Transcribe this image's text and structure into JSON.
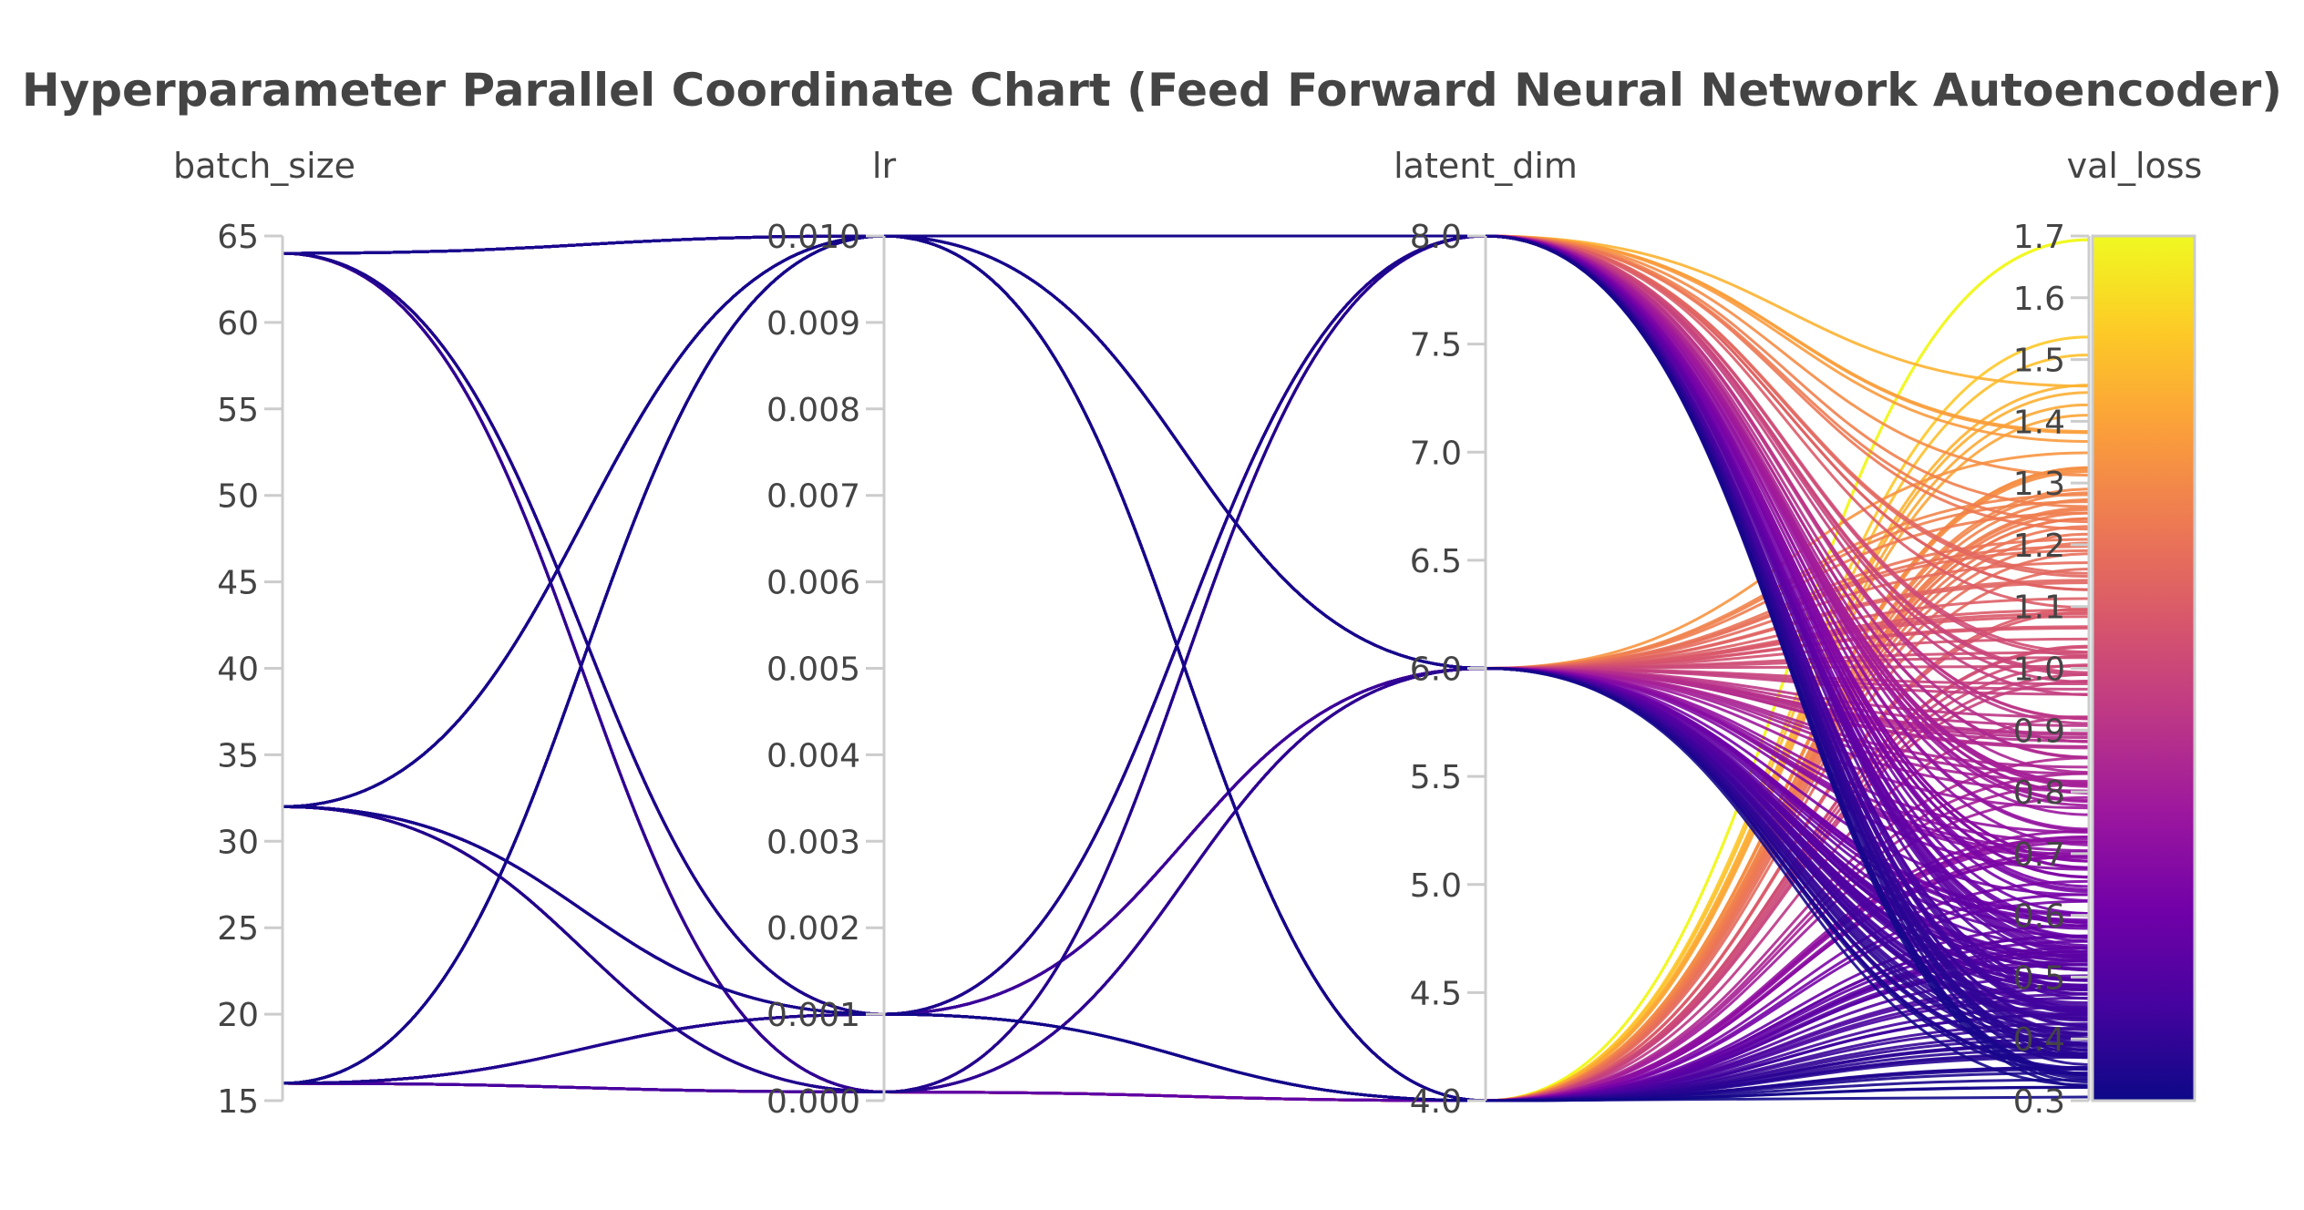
{
  "chart_data": {
    "type": "parallel_coordinates",
    "title": "Hyperparameter Parallel Coordinate Chart (Feed Forward Neural Network Autoencoder)",
    "dimensions": [
      {
        "name": "batch_size",
        "range": [
          15,
          65
        ],
        "ticks": [
          "15",
          "20",
          "25",
          "30",
          "35",
          "40",
          "45",
          "50",
          "55",
          "60",
          "65"
        ]
      },
      {
        "name": "lr",
        "range": [
          0.0,
          0.01
        ],
        "ticks": [
          "0.000",
          "0.001",
          "0.002",
          "0.003",
          "0.004",
          "0.005",
          "0.006",
          "0.007",
          "0.008",
          "0.009",
          "0.010"
        ]
      },
      {
        "name": "latent_dim",
        "range": [
          4.0,
          8.0
        ],
        "ticks": [
          "4.0",
          "4.5",
          "5.0",
          "5.5",
          "6.0",
          "6.5",
          "7.0",
          "7.5",
          "8.0"
        ]
      },
      {
        "name": "val_loss",
        "range": [
          0.3,
          1.7
        ],
        "ticks": [
          "0.3",
          "0.4",
          "0.5",
          "0.6",
          "0.7",
          "0.8",
          "0.9",
          "1.0",
          "1.1",
          "1.2",
          "1.3",
          "1.4",
          "1.5",
          "1.6",
          "1.7"
        ]
      }
    ],
    "color_by": "val_loss",
    "colorscale": [
      "#0d0887",
      "#46039f",
      "#7201a8",
      "#9c179e",
      "#bd3786",
      "#d8576b",
      "#ed7953",
      "#fb9f3a",
      "#fdca26",
      "#f0f921"
    ],
    "colorbar": {
      "ticks": [
        "0.3",
        "0.4",
        "0.5",
        "0.6",
        "0.7",
        "0.8",
        "0.9",
        "1.0",
        "1.1",
        "1.2",
        "1.3",
        "1.4",
        "1.5",
        "1.6",
        "1.7"
      ],
      "range": [
        0.3,
        1.7
      ]
    },
    "batch_size_values": [
      16,
      32,
      64
    ],
    "lr_values": [
      0.0001,
      0.001,
      0.01
    ],
    "latent_dim_values": [
      4,
      6,
      8
    ],
    "val_loss_range_by_latent_dim": {
      "8": [
        0.32,
        1.46
      ],
      "6": [
        0.34,
        1.42
      ],
      "4": [
        0.3,
        1.7
      ]
    }
  }
}
